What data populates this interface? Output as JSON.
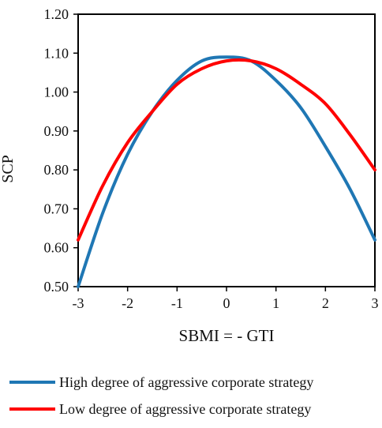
{
  "chart_data": {
    "type": "line",
    "xlabel": "SBMI = - GTI",
    "ylabel": "SCP",
    "xlim": [
      -3,
      3
    ],
    "ylim": [
      0.5,
      1.2
    ],
    "x_ticks": [
      "-3",
      "-2",
      "-1",
      "0",
      "1",
      "2",
      "3"
    ],
    "y_ticks": [
      "0.50",
      "0.60",
      "0.70",
      "0.80",
      "0.90",
      "1.00",
      "1.10",
      "1.20"
    ],
    "grid": false,
    "legend_position": "bottom",
    "x": [
      -3,
      -2.5,
      -2,
      -1.5,
      -1,
      -0.5,
      0,
      0.5,
      1,
      1.5,
      2,
      2.5,
      3
    ],
    "series": [
      {
        "name": "High degree of aggressive corporate strategy",
        "color": "#1f77b4",
        "values": [
          0.5,
          0.69,
          0.84,
          0.95,
          1.03,
          1.08,
          1.09,
          1.08,
          1.03,
          0.96,
          0.86,
          0.75,
          0.62
        ]
      },
      {
        "name": "Low degree of aggressive corporate strategy",
        "color": "#ff0000",
        "values": [
          0.62,
          0.76,
          0.87,
          0.95,
          1.02,
          1.06,
          1.08,
          1.08,
          1.06,
          1.02,
          0.97,
          0.89,
          0.8
        ]
      }
    ]
  }
}
